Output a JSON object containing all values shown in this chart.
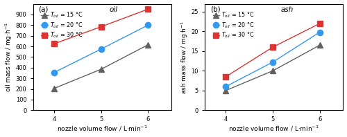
{
  "x": [
    4,
    5,
    6
  ],
  "oil_15": [
    205,
    385,
    615
  ],
  "oil_20": [
    355,
    575,
    800
  ],
  "oil_30": [
    625,
    785,
    950
  ],
  "ash_15": [
    5.0,
    10.0,
    16.5
  ],
  "ash_20": [
    6.0,
    12.2,
    19.8
  ],
  "ash_30": [
    8.5,
    16.0,
    22.0
  ],
  "color_15": "#606060",
  "color_20": "#3399ee",
  "color_30": "#dd3333",
  "marker_15": "^",
  "marker_20": "o",
  "marker_30": "s",
  "label_15": "$T_{oil}$ = 15 °C",
  "label_20": "$T_{oil}$ = 20 °C",
  "label_30": "$T_{oil}$ = 30 °C",
  "xlabel": "nozzle volume flow / L·min$^{-1}$",
  "ylabel_a": "oil mass flow / mg·h$^{-1}$",
  "ylabel_b": "ash mass flow / mg·h$^{-1}$",
  "title_a": "oil",
  "title_b": "ash",
  "panel_a": "(a)",
  "panel_b": "(b)",
  "ylim_a": [
    0,
    1000
  ],
  "ylim_b": [
    0,
    27
  ],
  "yticks_a": [
    0,
    100,
    200,
    300,
    400,
    500,
    600,
    700,
    800,
    900
  ],
  "yticks_b": [
    0,
    5,
    10,
    15,
    20,
    25
  ],
  "xlim": [
    3.55,
    6.5
  ],
  "xticks": [
    4,
    5,
    6
  ],
  "marker_size": 6,
  "line_width": 1.0,
  "bg_color": "#ffffff"
}
